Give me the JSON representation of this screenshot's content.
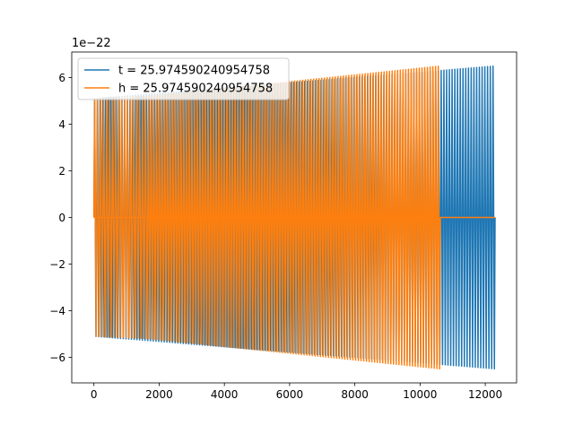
{
  "chart_data": {
    "type": "line",
    "title": "",
    "xlabel": "",
    "ylabel": "",
    "offset_text": "1e−22",
    "xlim": [
      -680,
      12960
    ],
    "ylim": [
      -7.1,
      7.1
    ],
    "x_ticks": [
      0,
      2000,
      4000,
      6000,
      8000,
      10000,
      12000
    ],
    "x_tick_labels": [
      "0",
      "2000",
      "4000",
      "6000",
      "8000",
      "10000",
      "12000"
    ],
    "y_ticks": [
      -6,
      -4,
      -2,
      0,
      2,
      4,
      6
    ],
    "y_tick_labels": [
      "−6",
      "−4",
      "−2",
      "0",
      "2",
      "4",
      "6"
    ],
    "grid": false,
    "legend_position": "top-left",
    "series": [
      {
        "name": "t = 25.974590240954758",
        "color": "#1f77b4",
        "segments": [
          {
            "x_start": 0,
            "x_end": 12300,
            "amp_start": 5.1,
            "amp_end": 6.5,
            "cycles": 147
          }
        ]
      },
      {
        "name": "h = 25.974590240954758",
        "color": "#ff7f0e",
        "segments": [
          {
            "x_start": 0,
            "x_end": 1650,
            "amp_start": 5.1,
            "amp_end": 5.2,
            "cycles": 18
          },
          {
            "x_start": 1650,
            "x_end": 10620,
            "amp_start": 5.2,
            "amp_end": 6.5,
            "cycles": 108
          }
        ],
        "flat": [
          {
            "x_start": 0,
            "x_end": 1650,
            "value": 0
          },
          {
            "x_start": 10620,
            "x_end": 12300,
            "value": 0
          }
        ]
      }
    ]
  }
}
